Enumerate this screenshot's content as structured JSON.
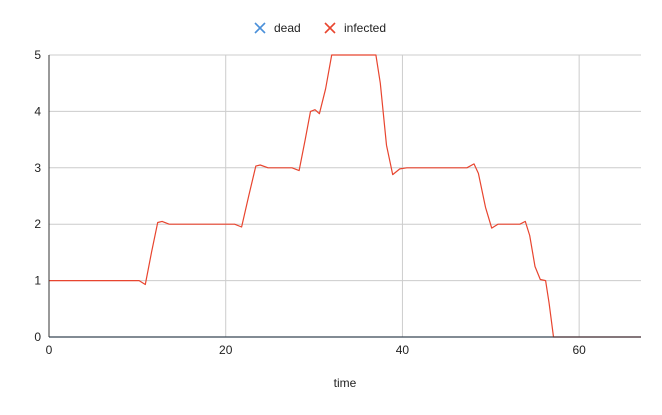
{
  "chart_data": {
    "type": "line",
    "title": "",
    "xlabel": "time",
    "ylabel": "",
    "xlim": [
      0,
      67
    ],
    "ylim": [
      0,
      5
    ],
    "x_ticks": [
      0,
      20,
      40,
      60
    ],
    "y_ticks": [
      0,
      1,
      2,
      3,
      4,
      5
    ],
    "grid": true,
    "legend_position": "top-center",
    "marker": "x",
    "series": [
      {
        "name": "dead",
        "color": "#4a90d9",
        "points": [
          [
            0,
            0
          ],
          [
            67,
            0
          ]
        ]
      },
      {
        "name": "infected",
        "color": "#e8452f",
        "points": [
          [
            0,
            1
          ],
          [
            10.2,
            1
          ],
          [
            10.9,
            0.93
          ],
          [
            11.6,
            1.5
          ],
          [
            12.3,
            2.03
          ],
          [
            12.8,
            2.05
          ],
          [
            13.6,
            2.0
          ],
          [
            21,
            2.0
          ],
          [
            21.8,
            1.95
          ],
          [
            22.6,
            2.5
          ],
          [
            23.4,
            3.03
          ],
          [
            23.9,
            3.05
          ],
          [
            24.8,
            3.0
          ],
          [
            27.5,
            3.0
          ],
          [
            28.3,
            2.95
          ],
          [
            29.0,
            3.5
          ],
          [
            29.6,
            4.0
          ],
          [
            30.1,
            4.03
          ],
          [
            30.6,
            3.96
          ],
          [
            31.3,
            4.4
          ],
          [
            32.0,
            5.0
          ],
          [
            37.0,
            5.0
          ],
          [
            37.5,
            4.5
          ],
          [
            38.2,
            3.4
          ],
          [
            38.9,
            2.88
          ],
          [
            39.7,
            2.98
          ],
          [
            40.5,
            3.0
          ],
          [
            47.3,
            3.0
          ],
          [
            48.1,
            3.07
          ],
          [
            48.6,
            2.9
          ],
          [
            49.4,
            2.3
          ],
          [
            50.1,
            1.93
          ],
          [
            50.8,
            2.0
          ],
          [
            53.3,
            2.0
          ],
          [
            53.9,
            2.05
          ],
          [
            54.4,
            1.8
          ],
          [
            55.0,
            1.25
          ],
          [
            55.6,
            1.02
          ],
          [
            56.2,
            1.0
          ],
          [
            56.6,
            0.6
          ],
          [
            57.1,
            0
          ],
          [
            67,
            0
          ]
        ]
      }
    ]
  }
}
